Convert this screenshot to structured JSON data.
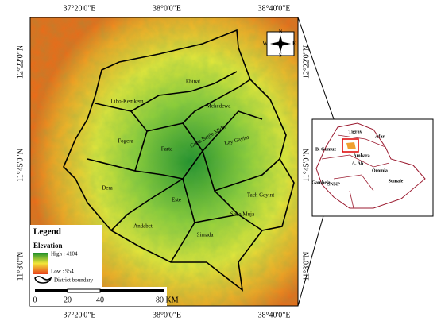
{
  "coordinates": {
    "top": [
      "37°20'0\"E",
      "38°0'0\"E",
      "38°40'0\"E"
    ],
    "bottom": [
      "37°20'0\"E",
      "38°0'0\"E",
      "38°40'0\"E"
    ],
    "left": [
      "12°22'0\"N",
      "11°45'0\"N",
      "11°8'0\"N"
    ],
    "right": [
      "12°22'0\"N",
      "11°45'0\"N",
      "11°8'0\"N"
    ]
  },
  "districts": [
    "Ebinat",
    "Libo-Kemkem",
    "Mekedewa",
    "Fogera",
    "Farta",
    "Guna Begie Midir",
    "Lay Gayint",
    "Dera",
    "Este",
    "Tach Gayint",
    "Sede Muja",
    "Andabet",
    "Simada"
  ],
  "legend": {
    "title": "Legend",
    "elevation": "Elevation",
    "high": "High : 4104",
    "low": "Low : 954",
    "boundary": "District boundary"
  },
  "scale": [
    "0",
    "20",
    "40",
    "80 KM"
  ],
  "compass": [
    "N",
    "E",
    "S",
    "W"
  ],
  "inset": [
    "Tigray",
    "Afar",
    "Amhara",
    "B. Gumuz",
    "A. Ab",
    "Oromia",
    "Gambela",
    "SNNP",
    "Somale"
  ]
}
